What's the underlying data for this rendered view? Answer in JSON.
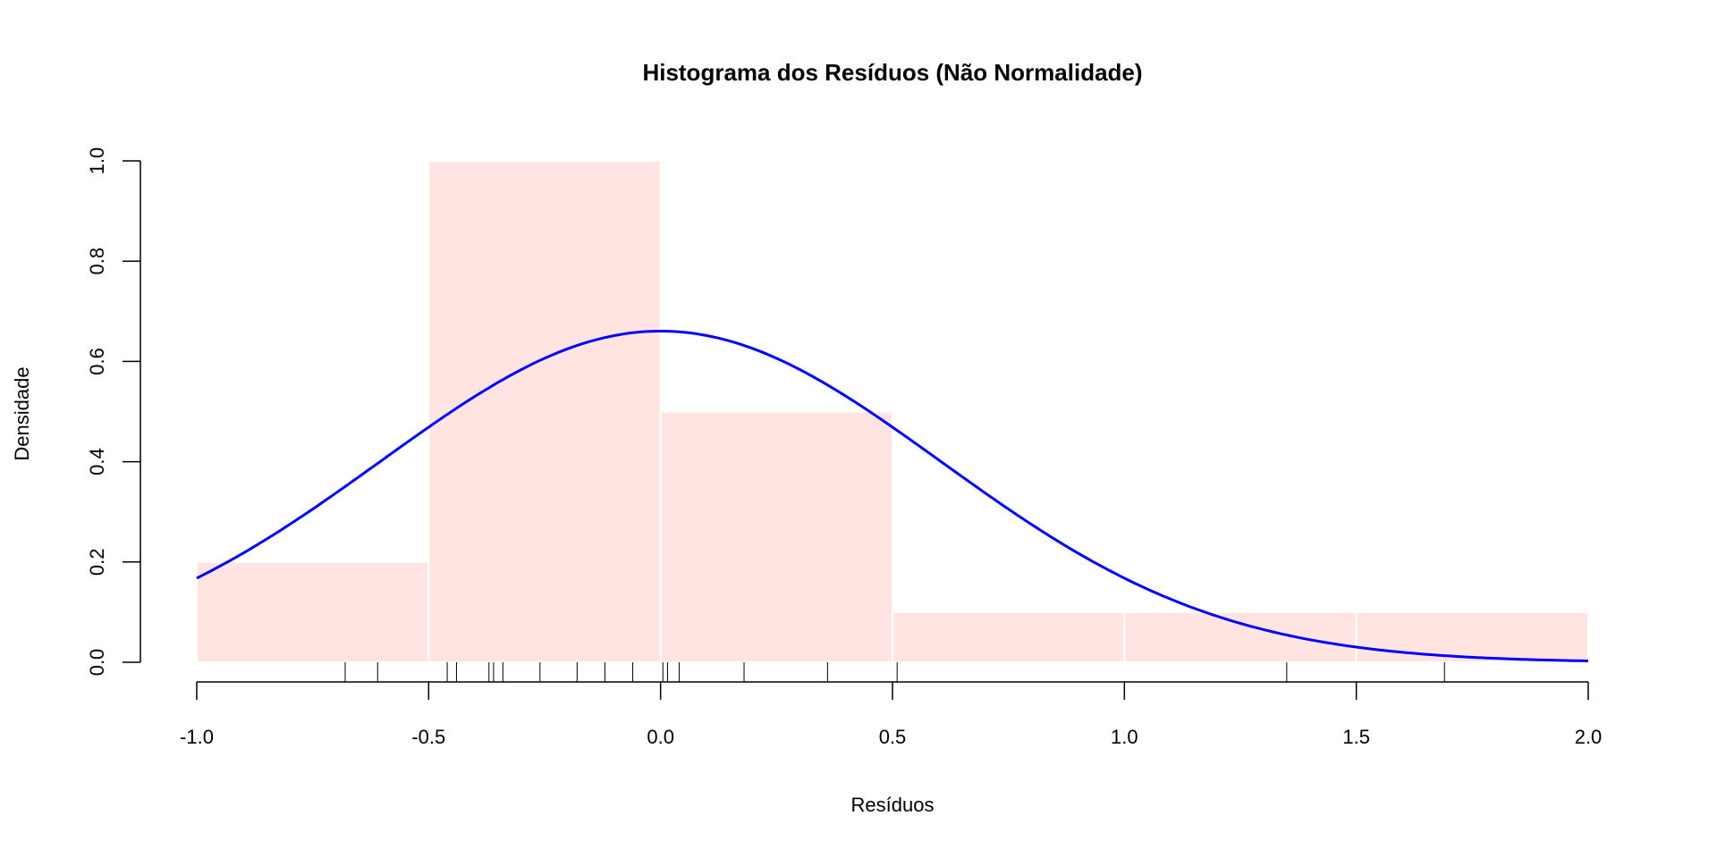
{
  "chart_data": {
    "type": "histogram",
    "title": "Histograma dos Resíduos (Não Normalidade)",
    "xlabel": "Resíduos",
    "ylabel": "Densidade",
    "xlim": [
      -1.0,
      2.0
    ],
    "ylim": [
      0,
      1.0
    ],
    "x_ticks": [
      -1.0,
      -0.5,
      0.0,
      0.5,
      1.0,
      1.5,
      2.0
    ],
    "x_tick_labels": [
      "-1.0",
      "-0.5",
      "0.0",
      "0.5",
      "1.0",
      "1.5",
      "2.0"
    ],
    "y_ticks": [
      0.0,
      0.2,
      0.4,
      0.6,
      0.8,
      1.0
    ],
    "y_tick_labels": [
      "0.0",
      "0.2",
      "0.4",
      "0.6",
      "0.8",
      "1.0"
    ],
    "bins": [
      {
        "from": -1.0,
        "to": -0.5,
        "density": 0.2
      },
      {
        "from": -0.5,
        "to": 0.0,
        "density": 1.0
      },
      {
        "from": 0.0,
        "to": 0.5,
        "density": 0.5
      },
      {
        "from": 0.5,
        "to": 1.0,
        "density": 0.1
      },
      {
        "from": 1.0,
        "to": 1.5,
        "density": 0.1
      },
      {
        "from": 1.5,
        "to": 2.0,
        "density": 0.1
      }
    ],
    "rug": [
      -0.68,
      -0.61,
      -0.46,
      -0.44,
      -0.37,
      -0.36,
      -0.34,
      -0.26,
      -0.18,
      -0.12,
      -0.06,
      0.005,
      0.015,
      0.04,
      0.18,
      0.36,
      0.51,
      1.35,
      1.69
    ],
    "normal_curve": {
      "mean": 0.0,
      "sd": 0.604
    },
    "grid": false,
    "colors": {
      "bar_fill": "#FFE4E1",
      "bar_border": "#FFFFFF",
      "curve": "#0000FF",
      "axis": "#000000"
    }
  }
}
